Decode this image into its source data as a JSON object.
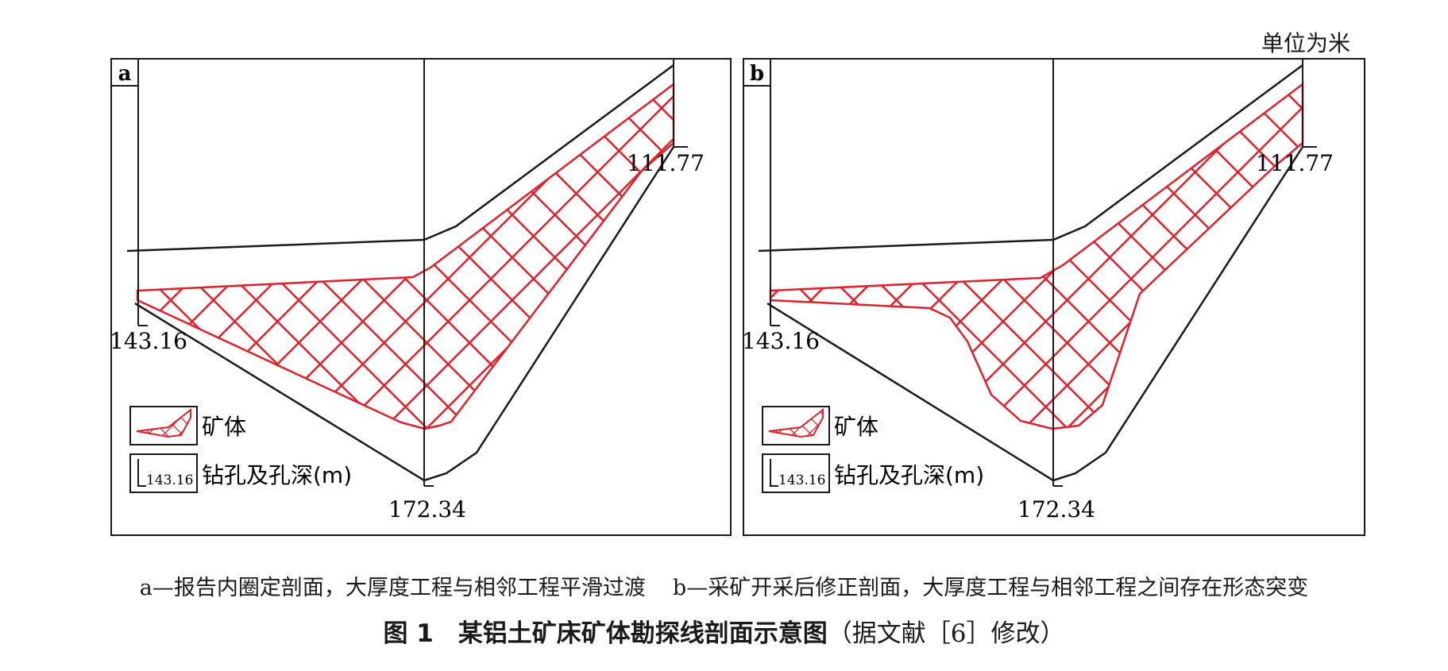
{
  "unit_note": "单位为米",
  "panels": [
    {
      "tag": "a",
      "top_depth": "111.77",
      "left_depth": "143.16",
      "bottom_depth": "172.34",
      "legend": {
        "ore_label": "矿体",
        "drill_box_value": "143.16",
        "drill_label": "钻孔及孔深(m)"
      }
    },
    {
      "tag": "b",
      "top_depth": "111.77",
      "left_depth": "143.16",
      "bottom_depth": "172.34",
      "legend": {
        "ore_label": "矿体",
        "drill_box_value": "143.16",
        "drill_label": "钻孔及孔深(m)"
      }
    }
  ],
  "caption": {
    "sub_a": "a—报告内圈定剖面，大厚度工程与相邻工程平滑过渡",
    "sub_b": "b—采矿开采后修正剖面，大厚度工程与相邻工程之间存在形态突变",
    "main_prefix": "图 1　某铝土矿床矿体勘探线剖面示意图",
    "main_ref": "（据文献［6］修改）"
  },
  "colors": {
    "ore": "#e0202a",
    "line": "#1a1a1a"
  }
}
